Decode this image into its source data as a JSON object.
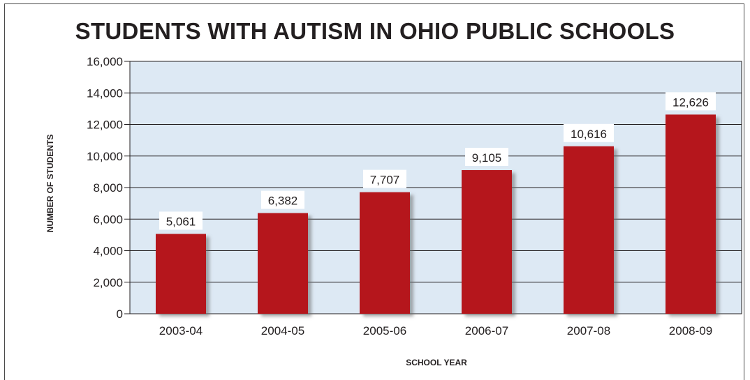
{
  "chart_data": {
    "type": "bar",
    "title": "STUDENTS WITH AUTISM IN OHIO PUBLIC SCHOOLS",
    "xlabel": "SCHOOL YEAR",
    "ylabel": "NUMBER OF STUDENTS",
    "categories": [
      "2003-04",
      "2004-05",
      "2005-06",
      "2006-07",
      "2007-08",
      "2008-09"
    ],
    "values": [
      5061,
      6382,
      7707,
      9105,
      10616,
      12626
    ],
    "value_labels": [
      "5,061",
      "6,382",
      "7,707",
      "9,105",
      "10,616",
      "12,626"
    ],
    "ylim": [
      0,
      16000
    ],
    "yticks": [
      0,
      2000,
      4000,
      6000,
      8000,
      10000,
      12000,
      14000,
      16000
    ],
    "ytick_labels": [
      "0",
      "2,000",
      "4,000",
      "6,000",
      "8,000",
      "10,000",
      "12,000",
      "14,000",
      "16,000"
    ],
    "grid": true,
    "legend": "none",
    "colors": {
      "bar": "#b5121b",
      "plot_background": "#dde9f4",
      "gridline": "#231f20",
      "text": "#231f20"
    }
  }
}
